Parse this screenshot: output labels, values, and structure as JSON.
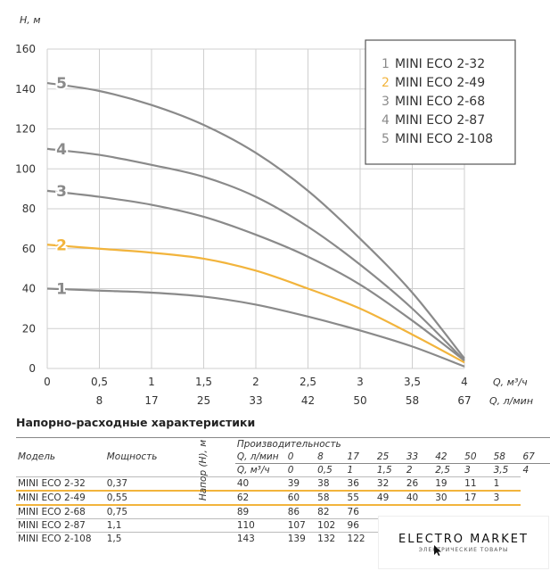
{
  "chart_data": {
    "type": "line",
    "xlabel": "Q, м³/ч",
    "xlabel2": "Q, л/мин",
    "ylabel": "H, м",
    "x_ticks": [
      "0",
      "0,5",
      "1",
      "1,5",
      "2",
      "2,5",
      "3",
      "3,5",
      "4"
    ],
    "x_ticks2": [
      "8",
      "17",
      "25",
      "33",
      "42",
      "50",
      "58",
      "67"
    ],
    "y_ticks": [
      "0",
      "20",
      "40",
      "60",
      "80",
      "100",
      "120",
      "140",
      "160"
    ],
    "xlim": [
      0,
      4
    ],
    "ylim": [
      0,
      160
    ],
    "grid": true,
    "legend_position": "top-right",
    "x": [
      0,
      0.5,
      1,
      1.5,
      2,
      2.5,
      3,
      3.5,
      4
    ],
    "series": [
      {
        "num": "1",
        "name": "MINI ECO 2-32",
        "color": "#8a8a8a",
        "values": [
          40,
          39,
          38,
          36,
          32,
          26,
          19,
          11,
          1
        ]
      },
      {
        "num": "2",
        "name": "MINI ECO 2-49",
        "color": "#f2b43c",
        "values": [
          62,
          60,
          58,
          55,
          49,
          40,
          30,
          17,
          3
        ]
      },
      {
        "num": "3",
        "name": "MINI ECO 2-68",
        "color": "#8a8a8a",
        "values": [
          89,
          86,
          82,
          76,
          67,
          56,
          42,
          24,
          4
        ]
      },
      {
        "num": "4",
        "name": "MINI ECO 2-87",
        "color": "#8a8a8a",
        "values": [
          110,
          107,
          102,
          96,
          86,
          71,
          52,
          30,
          4
        ]
      },
      {
        "num": "5",
        "name": "MINI ECO 2-108",
        "color": "#8a8a8a",
        "values": [
          143,
          139,
          132,
          122,
          108,
          89,
          65,
          38,
          5
        ]
      }
    ]
  },
  "table": {
    "title": "Напорно-расходные характеристики",
    "header_group": "Производительность",
    "col_model": "Модель",
    "col_power": "Мощность",
    "row_q_lmin_label": "Q, л/мин",
    "row_q_m3h_label": "Q, м³/ч",
    "side_label": "Напор (H), м",
    "q_lmin": [
      "0",
      "8",
      "17",
      "25",
      "33",
      "42",
      "50",
      "58",
      "67"
    ],
    "q_m3h": [
      "0",
      "0,5",
      "1",
      "1,5",
      "2",
      "2,5",
      "3",
      "3,5",
      "4"
    ],
    "rows": [
      {
        "model": "MINI ECO 2-32",
        "power": "0,37",
        "values": [
          "40",
          "39",
          "38",
          "36",
          "32",
          "26",
          "19",
          "11",
          "1"
        ]
      },
      {
        "model": "MINI ECO 2-49",
        "power": "0,55",
        "values": [
          "62",
          "60",
          "58",
          "55",
          "49",
          "40",
          "30",
          "17",
          "3"
        ]
      },
      {
        "model": "MINI ECO 2-68",
        "power": "0,75",
        "values": [
          "89",
          "86",
          "82",
          "76",
          "",
          "",
          "",
          "",
          ""
        ]
      },
      {
        "model": "MINI ECO 2-87",
        "power": "1,1",
        "values": [
          "110",
          "107",
          "102",
          "96",
          "",
          "",
          "",
          "",
          ""
        ]
      },
      {
        "model": "MINI ECO 2-108",
        "power": "1,5",
        "values": [
          "143",
          "139",
          "132",
          "122",
          "",
          "",
          "",
          "",
          ""
        ]
      }
    ]
  },
  "watermark": {
    "title": "ELECTRO MARKET",
    "subtitle": "ЭЛЕКТРИЧЕСКИЕ ТОВАРЫ",
    "cursor_icon": "mouse-pointer-icon"
  },
  "colors": {
    "grid": "#cfcfcf",
    "gray_curve": "#8a8a8a",
    "highlight": "#f2b43c"
  }
}
